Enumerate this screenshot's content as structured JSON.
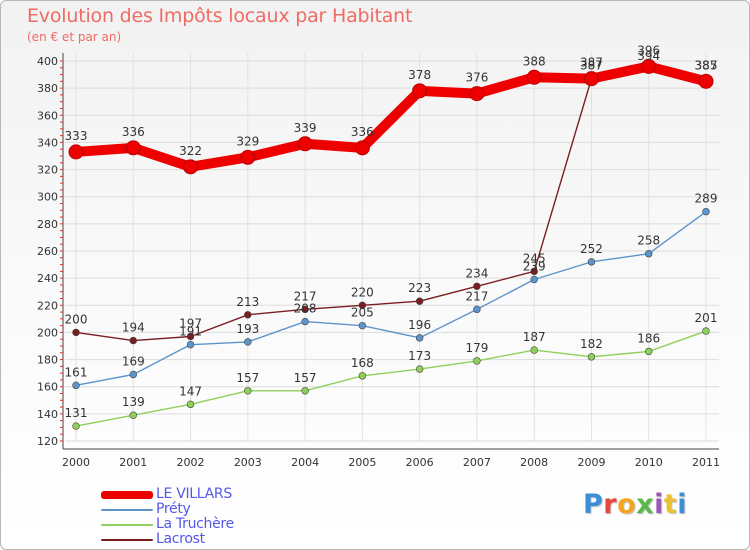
{
  "title": "Evolution des Impôts locaux par Habitant",
  "subtitle": "(en € et par an)",
  "logo": {
    "text": "Proxiti",
    "letter_colors": [
      "#3b8fd6",
      "#e8463a",
      "#f4a623",
      "#59b847",
      "#9b59b6",
      "#e8c233",
      "#3b8fd6"
    ]
  },
  "chart_data": {
    "type": "line",
    "title": "Evolution des Impôts locaux par Habitant",
    "subtitle": "(en € et par an)",
    "xlabel": "",
    "ylabel": "",
    "x": [
      "2000",
      "2001",
      "2002",
      "2003",
      "2004",
      "2005",
      "2006",
      "2007",
      "2008",
      "2009",
      "2010",
      "2011"
    ],
    "ylim": [
      120,
      400
    ],
    "yticks": [
      120,
      140,
      160,
      180,
      200,
      220,
      240,
      260,
      280,
      300,
      320,
      340,
      360,
      380,
      400
    ],
    "grid": true,
    "legend_position": "bottom-left",
    "series": [
      {
        "name": "LE VILLARS",
        "color": "#ee0000",
        "values": [
          333,
          336,
          322,
          329,
          339,
          336,
          378,
          376,
          388,
          387,
          396,
          385
        ],
        "labels": [
          "333",
          "336",
          "322",
          "329",
          "339",
          "336",
          "378",
          "376",
          "388",
          "387",
          "396",
          "385"
        ]
      },
      {
        "name": "Préty",
        "color": "#5b95cc",
        "values": [
          161,
          169,
          191,
          193,
          208,
          205,
          196,
          217,
          239,
          252,
          258,
          289
        ],
        "labels": [
          "161",
          "169",
          "191",
          "193",
          "208",
          "205",
          "196",
          "217",
          "239",
          "252",
          "258",
          "289"
        ]
      },
      {
        "name": "La Truchère",
        "color": "#8fd05a",
        "values": [
          131,
          139,
          147,
          157,
          157,
          168,
          173,
          179,
          187,
          182,
          186,
          201
        ],
        "labels": [
          "131",
          "139",
          "147",
          "157",
          "157",
          "168",
          "173",
          "179",
          "187",
          "182",
          "186",
          "201"
        ]
      },
      {
        "name": "Lacrost",
        "color": "#7a1e22",
        "values": [
          200,
          194,
          197,
          213,
          217,
          220,
          223,
          234,
          245,
          387,
          394,
          387
        ],
        "labels": [
          "200",
          "194",
          "197",
          "213",
          "217",
          "220",
          "223",
          "234",
          "245",
          "387",
          "394",
          "387"
        ]
      }
    ]
  }
}
